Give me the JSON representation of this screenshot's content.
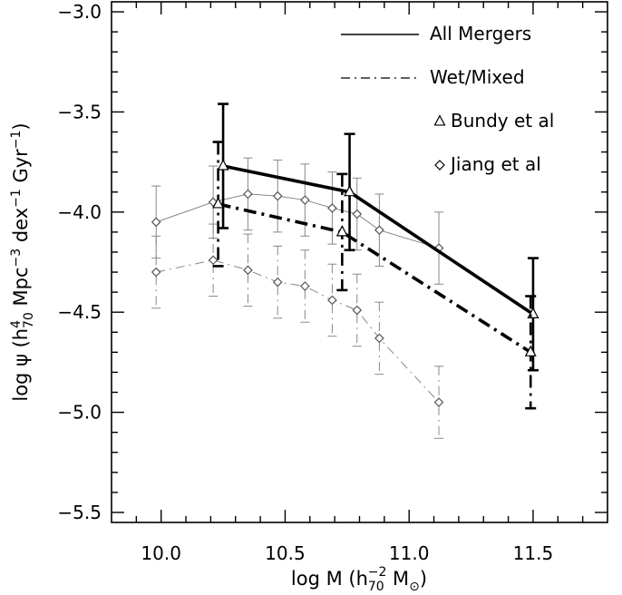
{
  "chart_data": {
    "type": "line",
    "xlabel": "log M (h70-2 M⊙)",
    "ylabel": "log ψ (h704 Mpc-3 dex-1 Gyr-1)",
    "xlabel_parts": {
      "base": "log M (h",
      "sub": "70",
      "sup": "−2",
      "rest": "  M",
      "sun": "⊙",
      "close": ")"
    },
    "ylabel_parts": {
      "base": "log ψ (h",
      "sup1": "4",
      "sub1": "70",
      "mid1": "  Mpc",
      "sup2": "−3",
      "mid2": "  dex",
      "sup3": "−1",
      "mid3": "  Gyr",
      "sup4": "−1",
      "close": ")"
    },
    "xlim": [
      9.8,
      11.8
    ],
    "ylim": [
      -5.55,
      -2.95
    ],
    "xticks": [
      10.0,
      10.5,
      11.0,
      11.5
    ],
    "xtick_labels": [
      "10.0",
      "10.5",
      "11.0",
      "11.5"
    ],
    "yticks": [
      -3.0,
      -3.5,
      -4.0,
      -4.5,
      -5.0,
      -5.5
    ],
    "ytick_labels": [
      "−3.0",
      "−3.5",
      "−4.0",
      "−4.5",
      "−5.0",
      "−5.5"
    ],
    "legend": {
      "position": "top-right",
      "entries": [
        {
          "label": "All Mergers",
          "kind": "line-solid"
        },
        {
          "label": "Wet/Mixed",
          "kind": "line-dashdot"
        },
        {
          "label": "Bundy et al",
          "kind": "marker-triangle"
        },
        {
          "label": "Jiang et al",
          "kind": "marker-diamond"
        }
      ]
    },
    "series": [
      {
        "name": "Bundy et al — All Mergers",
        "style": "solid",
        "weight": "thick",
        "color": "#000000",
        "marker": "triangle",
        "x": [
          10.25,
          10.76,
          11.5
        ],
        "y": [
          -3.77,
          -3.9,
          -4.51
        ],
        "yerr": [
          0.31,
          0.29,
          0.28
        ]
      },
      {
        "name": "Bundy et al — Wet/Mixed",
        "style": "dashdot",
        "weight": "thick",
        "color": "#000000",
        "marker": "triangle",
        "x": [
          10.23,
          10.73,
          11.49
        ],
        "y": [
          -3.96,
          -4.1,
          -4.7
        ],
        "yerr": [
          0.31,
          0.29,
          0.28
        ]
      },
      {
        "name": "Jiang et al — All Mergers",
        "style": "solid",
        "weight": "thin",
        "color": "#888888",
        "marker": "diamond",
        "x": [
          9.98,
          10.21,
          10.35,
          10.47,
          10.58,
          10.69,
          10.79,
          10.88,
          11.12
        ],
        "y": [
          -4.05,
          -3.95,
          -3.91,
          -3.92,
          -3.94,
          -3.98,
          -4.01,
          -4.09,
          -4.18
        ],
        "yerr": [
          0.18,
          0.18,
          0.18,
          0.18,
          0.18,
          0.18,
          0.18,
          0.18,
          0.18
        ]
      },
      {
        "name": "Jiang et al — Wet/Mixed",
        "style": "dashdot",
        "weight": "thin",
        "color": "#888888",
        "marker": "diamond",
        "x": [
          9.98,
          10.21,
          10.35,
          10.47,
          10.58,
          10.69,
          10.79,
          10.88,
          11.12
        ],
        "y": [
          -4.3,
          -4.24,
          -4.29,
          -4.35,
          -4.37,
          -4.44,
          -4.49,
          -4.63,
          -4.95
        ],
        "yerr": [
          0.18,
          0.18,
          0.18,
          0.18,
          0.18,
          0.18,
          0.18,
          0.18,
          0.18
        ]
      }
    ]
  }
}
